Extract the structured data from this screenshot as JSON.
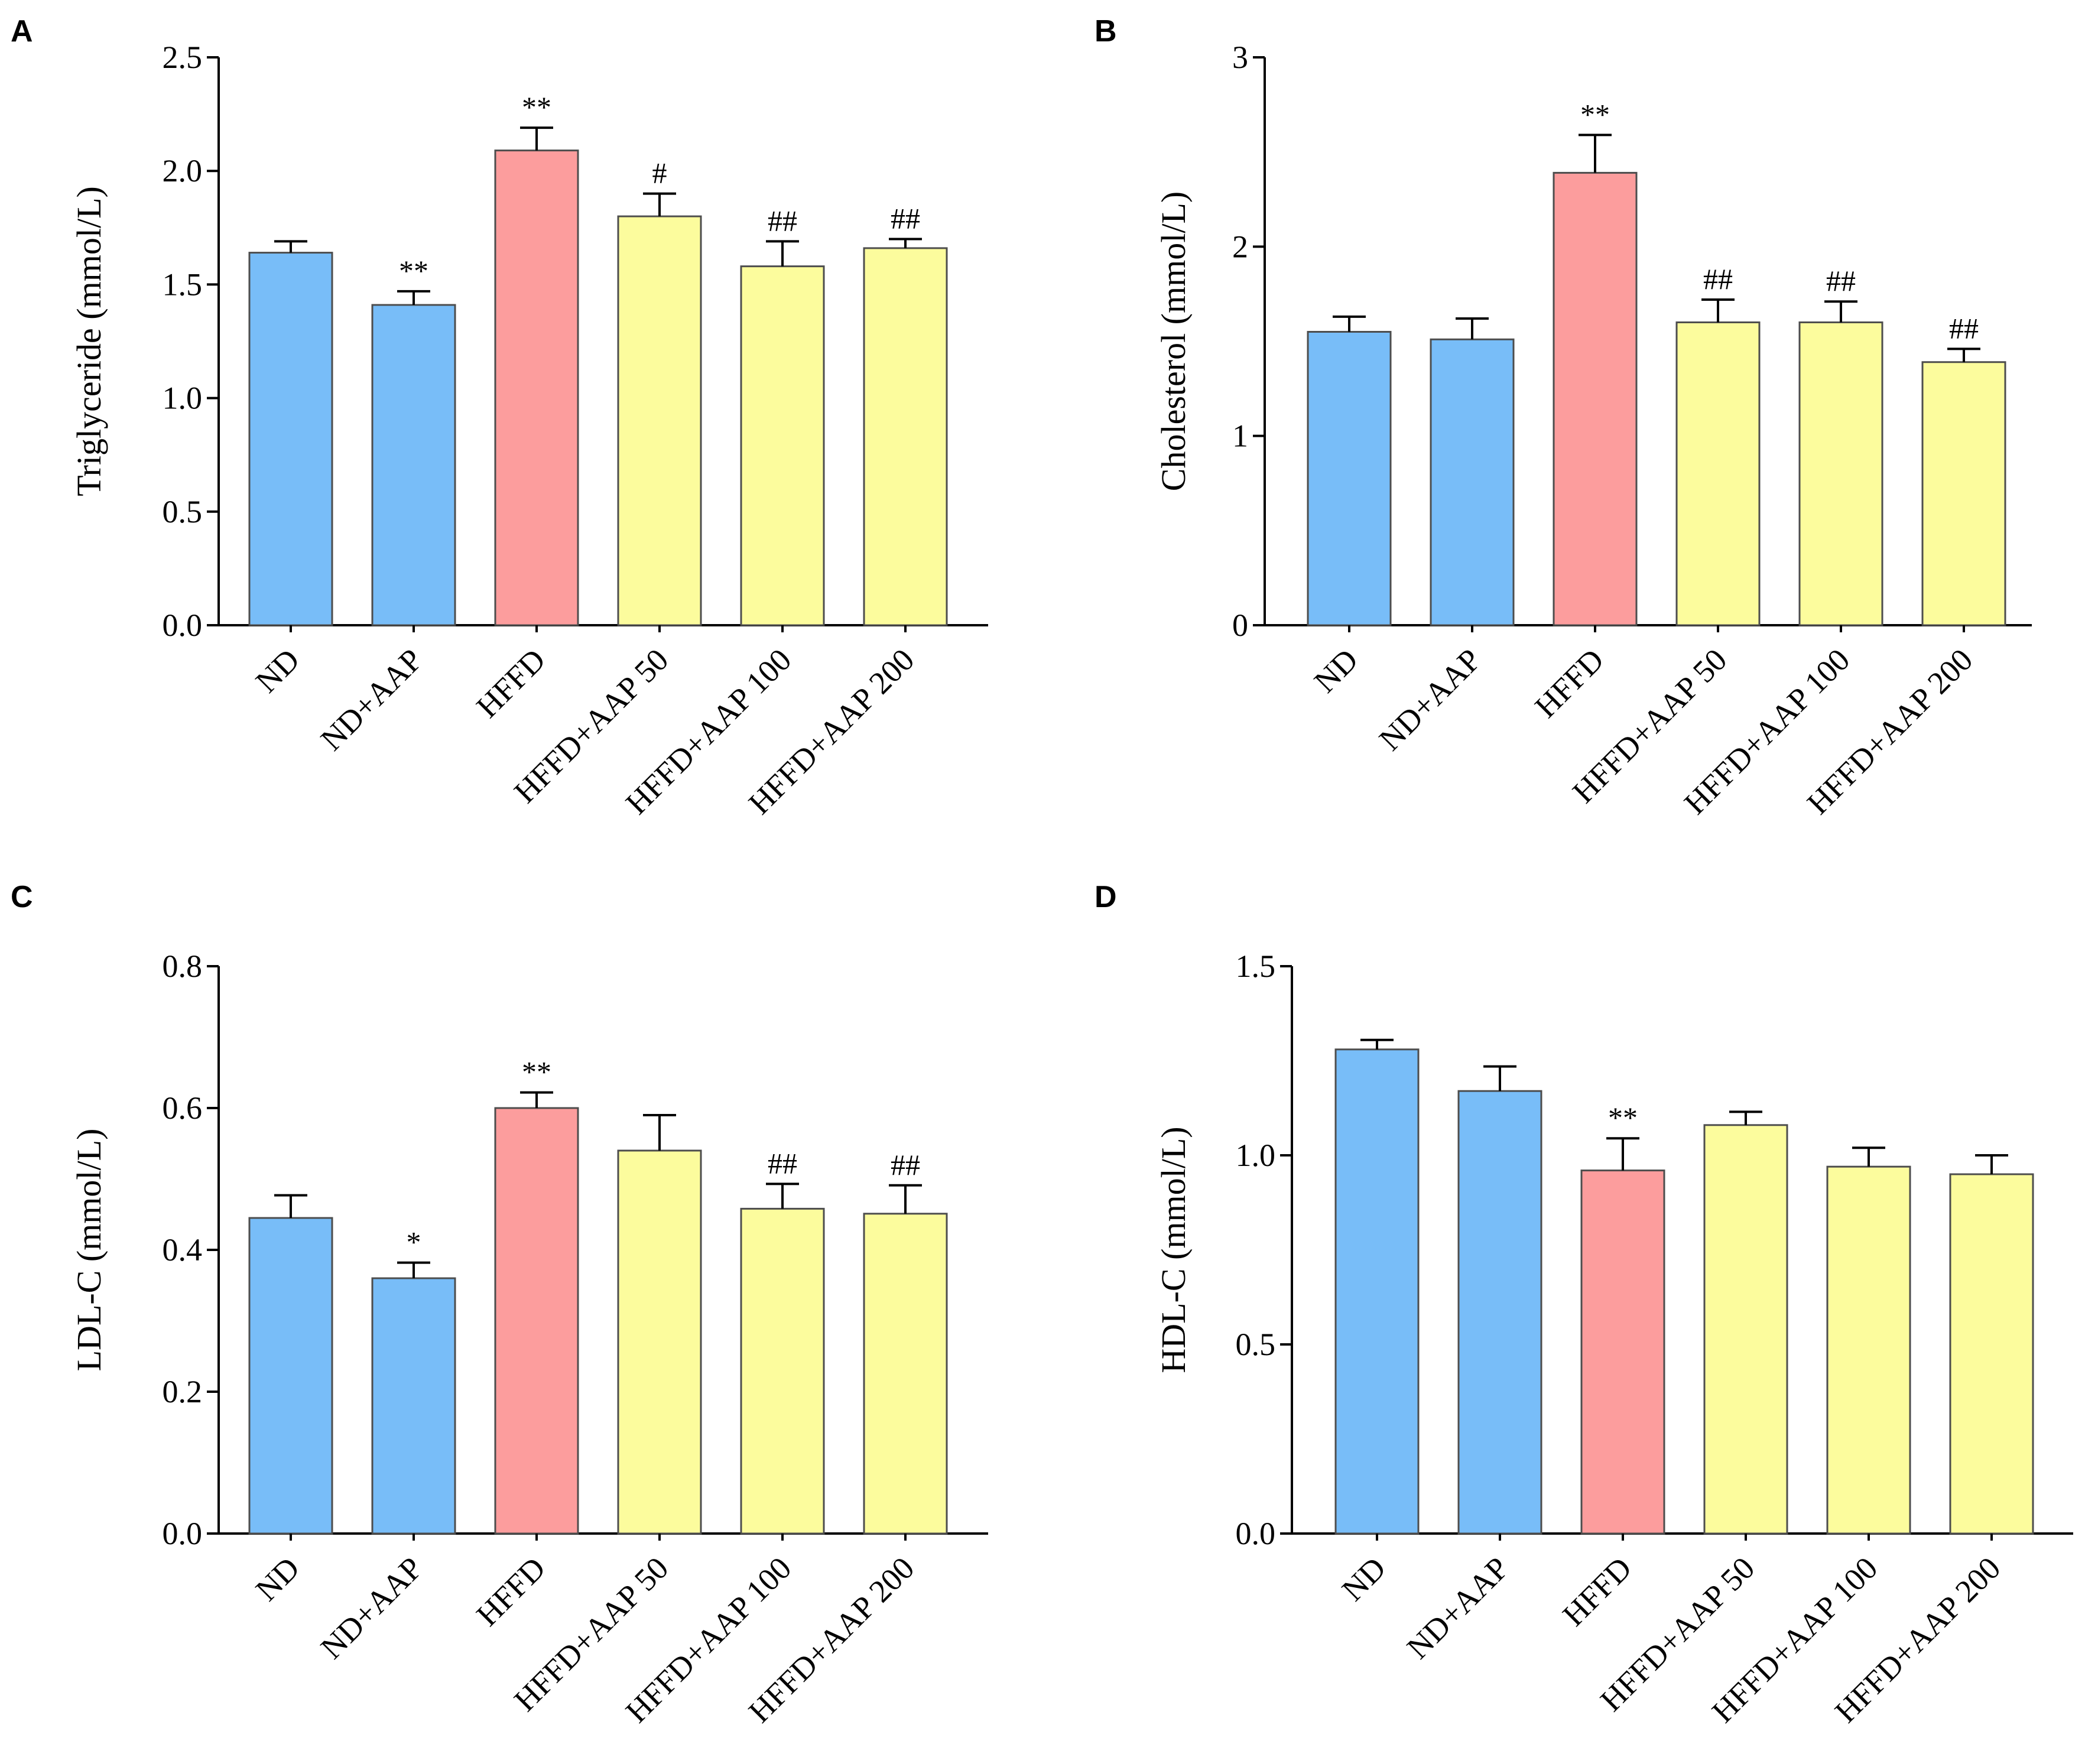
{
  "figure": {
    "colors": {
      "ND": "#78bdf8",
      "ND+AAP": "#78bdf8",
      "HFFD": "#fc9d9d",
      "HFFD+AAP 50": "#fcfc9d",
      "HFFD+AAP 100": "#fcfc9d",
      "HFFD+AAP 200": "#fcfc9d"
    }
  },
  "chart_data": [
    {
      "panel": "A",
      "type": "bar",
      "title": "",
      "xlabel": "",
      "ylabel": "Triglyceride (mmol/L)",
      "categories": [
        "ND",
        "ND+AAP",
        "HFFD",
        "HFFD+AAP 50",
        "HFFD+AAP 100",
        "HFFD+AAP 200"
      ],
      "values": [
        1.64,
        1.41,
        2.09,
        1.8,
        1.58,
        1.66
      ],
      "errors": [
        0.05,
        0.06,
        0.1,
        0.1,
        0.11,
        0.04
      ],
      "annotations": [
        "",
        "**",
        "**",
        "#",
        "##",
        "##"
      ],
      "ylim": [
        0,
        2.5
      ],
      "yticks": [
        0,
        0.5,
        1.0,
        1.5,
        2.0,
        2.5
      ],
      "ytick_labels": [
        "0.0",
        "0.5",
        "1.0",
        "1.5",
        "2.0",
        "2.5"
      ]
    },
    {
      "panel": "B",
      "type": "bar",
      "title": "",
      "xlabel": "",
      "ylabel": "Cholesterol (mmol/L)",
      "categories": [
        "ND",
        "ND+AAP",
        "HFFD",
        "HFFD+AAP 50",
        "HFFD+AAP 100",
        "HFFD+AAP 200"
      ],
      "values": [
        1.55,
        1.51,
        2.39,
        1.6,
        1.6,
        1.39
      ],
      "errors": [
        0.08,
        0.11,
        0.2,
        0.12,
        0.11,
        0.07
      ],
      "annotations": [
        "",
        "",
        "**",
        "##",
        "##",
        "##"
      ],
      "ylim": [
        0,
        3
      ],
      "yticks": [
        0,
        1,
        2,
        3
      ],
      "ytick_labels": [
        "0",
        "1",
        "2",
        "3"
      ]
    },
    {
      "panel": "C",
      "type": "bar",
      "title": "",
      "xlabel": "",
      "ylabel": "LDL-C (mmol/L)",
      "categories": [
        "ND",
        "ND+AAP",
        "HFFD",
        "HFFD+AAP 50",
        "HFFD+AAP 100",
        "HFFD+AAP 200"
      ],
      "values": [
        0.445,
        0.36,
        0.6,
        0.54,
        0.458,
        0.451
      ],
      "errors": [
        0.032,
        0.022,
        0.022,
        0.05,
        0.035,
        0.04
      ],
      "annotations": [
        "",
        "*",
        "**",
        "",
        "##",
        "##"
      ],
      "ylim": [
        0,
        0.8
      ],
      "yticks": [
        0,
        0.2,
        0.4,
        0.6,
        0.8
      ],
      "ytick_labels": [
        "0.0",
        "0.2",
        "0.4",
        "0.6",
        "0.8"
      ]
    },
    {
      "panel": "D",
      "type": "bar",
      "title": "",
      "xlabel": "",
      "ylabel": "HDL-C (mmol/L)",
      "categories": [
        "ND",
        "ND+AAP",
        "HFFD",
        "HFFD+AAP 50",
        "HFFD+AAP 100",
        "HFFD+AAP 200"
      ],
      "values": [
        1.28,
        1.17,
        0.96,
        1.08,
        0.97,
        0.95
      ],
      "errors": [
        0.025,
        0.065,
        0.085,
        0.035,
        0.05,
        0.05
      ],
      "annotations": [
        "",
        "",
        "**",
        "",
        "",
        ""
      ],
      "ylim": [
        0,
        1.5
      ],
      "yticks": [
        0,
        0.5,
        1.0,
        1.5
      ],
      "ytick_labels": [
        "0.0",
        "0.5",
        "1.0",
        "1.5"
      ]
    }
  ]
}
